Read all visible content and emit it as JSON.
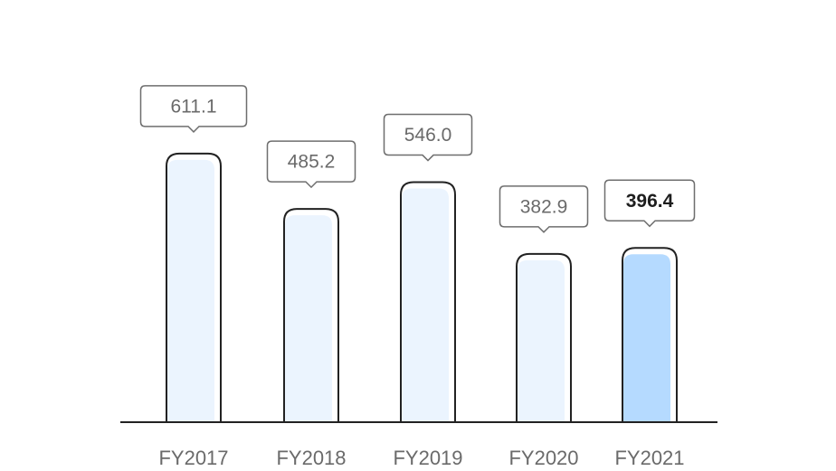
{
  "chart_data": {
    "type": "bar",
    "title": "",
    "xlabel": "",
    "ylabel": "",
    "categories": [
      "FY2017",
      "FY2018",
      "FY2019",
      "FY2020",
      "FY2021"
    ],
    "values": [
      611.1,
      485.2,
      546.0,
      382.9,
      396.4
    ],
    "value_labels": [
      "611.1",
      "485.2",
      "546.0",
      "382.9",
      "396.4"
    ],
    "ylim": [
      0,
      650
    ],
    "grid": false,
    "highlight_index": 4,
    "colors": {
      "bar_fill": "#ebf4fe",
      "bar_highlight_fill": "#b5daff",
      "bar_outline": "#222222",
      "callout_border": "#6e6e6e",
      "label_text": "#6a6a6a",
      "highlight_text": "#1e1e1e",
      "axis_line": "#222222"
    }
  }
}
